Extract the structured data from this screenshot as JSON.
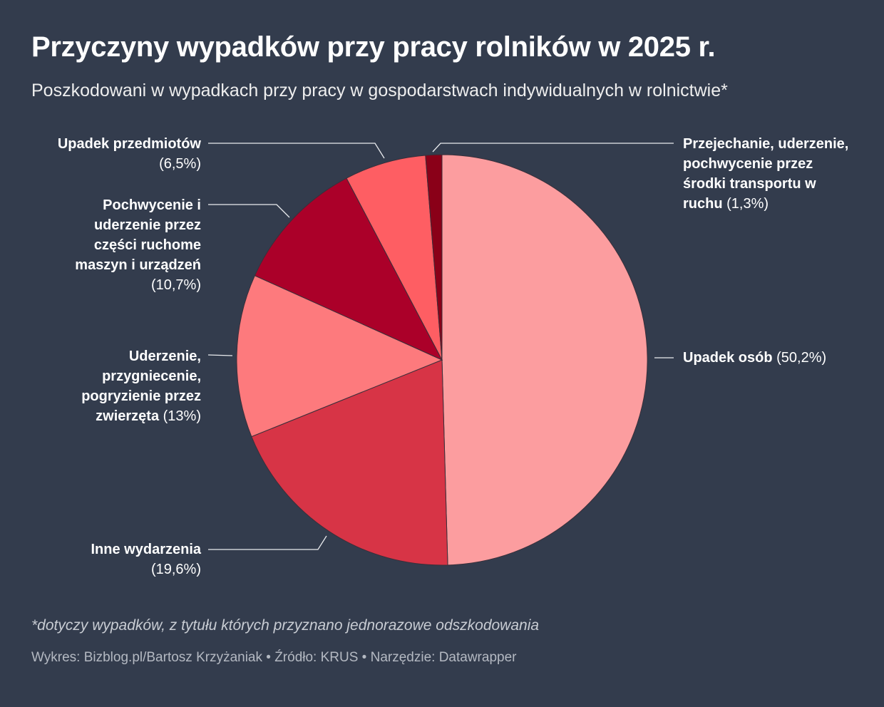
{
  "header": {
    "title": "Przyczyny wypadków przy pracy rolników w 2025 r.",
    "subtitle": "Poszkodowani w wypadkach przy pracy w gospodarstwach indywidualnych w rolnictwie*"
  },
  "chart_data": {
    "type": "pie",
    "slices": [
      {
        "name": "Upadek osób",
        "value": 50.2,
        "value_label": "(50,2%)",
        "color": "#fc9d9f"
      },
      {
        "name": "Inne wydarzenia",
        "value": 19.6,
        "value_label": "(19,6%)",
        "color": "#d73446"
      },
      {
        "name": "Uderzenie, przygniecenie, pogryzienie przez zwierzęta",
        "value": 13,
        "value_label": "(13%)",
        "color": "#fd7a7d"
      },
      {
        "name": "Pochwycenie i uderzenie przez części ruchome maszyn i urządzeń",
        "value": 10.7,
        "value_label": "(10,7%)",
        "color": "#ab0029"
      },
      {
        "name": "Upadek przedmiotów",
        "value": 6.5,
        "value_label": "(6,5%)",
        "color": "#fe5e63"
      },
      {
        "name": "Przejechanie, uderzenie, pochwycenie przez środki transportu w ruchu",
        "value": 1.3,
        "value_label": "(1,3%)",
        "color": "#8a0018"
      }
    ],
    "direction": "clockwise from top"
  },
  "footer": {
    "footnote": "*dotyczy wypadków, z tytułu których przyznano jednorazowe odszkodowania",
    "source": "Wykres: Bizblog.pl/Bartosz Krzyżaniak • Źródło: KRUS • Narzędzie: Datawrapper"
  }
}
